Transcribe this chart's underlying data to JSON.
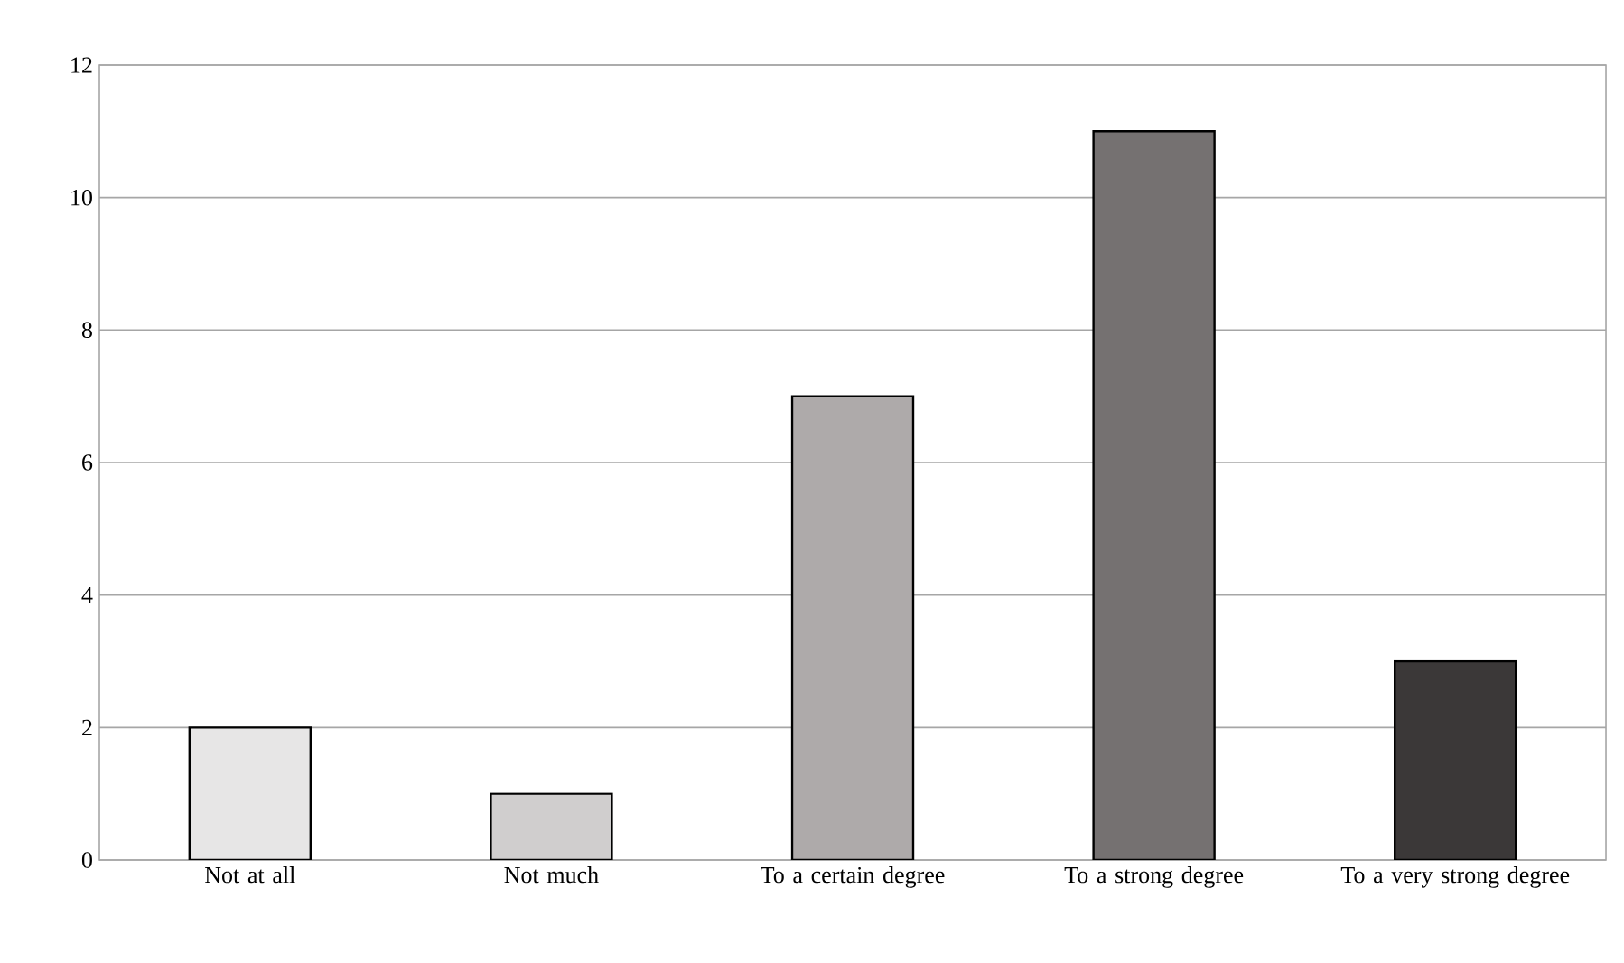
{
  "chart_data": {
    "type": "bar",
    "categories": [
      "Not at all",
      "Not much",
      "To a certain degree",
      "To a strong degree",
      "To a very strong degree"
    ],
    "values": [
      2,
      1,
      7,
      11,
      3
    ],
    "colors": [
      "#e7e6e6",
      "#d0cece",
      "#aeaaaa",
      "#757171",
      "#3b3838"
    ],
    "ylim": [
      0,
      12
    ],
    "yticks": [
      0,
      2,
      4,
      6,
      8,
      10,
      12
    ],
    "grid": "y"
  }
}
